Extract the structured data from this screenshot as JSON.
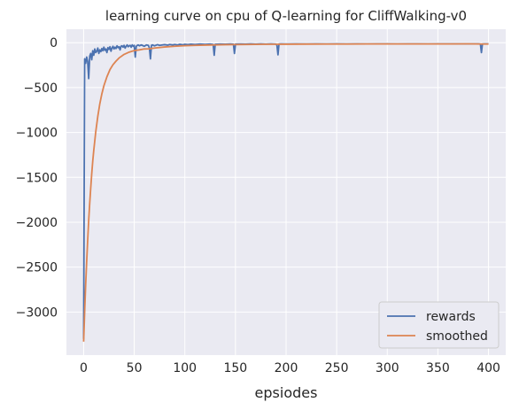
{
  "chart_data": {
    "type": "line",
    "title": "learning curve on cpu of Q-learning for CliffWalking-v0",
    "xlabel": "epsiodes",
    "ylabel": "",
    "xlim": [
      -17,
      417
    ],
    "ylim": [
      -3480,
      150
    ],
    "x_ticks": [
      0,
      50,
      100,
      150,
      200,
      250,
      300,
      350,
      400
    ],
    "y_ticks": [
      0,
      -500,
      -1000,
      -1500,
      -2000,
      -2500,
      -3000
    ],
    "y_tick_labels": [
      "0",
      "−500",
      "−1000",
      "−1500",
      "−2000",
      "−2500",
      "−3000"
    ],
    "grid": true,
    "legend_position": "lower-right",
    "colors": {
      "rewards": "#4c72b0",
      "smoothed": "#dd8452",
      "axes_background": "#eaeaf2",
      "grid": "#ffffff"
    },
    "series": [
      {
        "name": "rewards",
        "points": [
          [
            0,
            -3300
          ],
          [
            1,
            -180
          ],
          [
            2,
            -230
          ],
          [
            3,
            -160
          ],
          [
            4,
            -210
          ],
          [
            5,
            -400
          ],
          [
            6,
            -150
          ],
          [
            7,
            -120
          ],
          [
            8,
            -190
          ],
          [
            9,
            -90
          ],
          [
            10,
            -140
          ],
          [
            11,
            -70
          ],
          [
            12,
            -110
          ],
          [
            13,
            -95
          ],
          [
            14,
            -60
          ],
          [
            15,
            -120
          ],
          [
            16,
            -80
          ],
          [
            17,
            -100
          ],
          [
            18,
            -65
          ],
          [
            19,
            -90
          ],
          [
            20,
            -50
          ],
          [
            21,
            -85
          ],
          [
            22,
            -70
          ],
          [
            23,
            -110
          ],
          [
            24,
            -55
          ],
          [
            25,
            -75
          ],
          [
            26,
            -45
          ],
          [
            27,
            -95
          ],
          [
            28,
            -60
          ],
          [
            29,
            -40
          ],
          [
            30,
            -70
          ],
          [
            31,
            -50
          ],
          [
            32,
            -65
          ],
          [
            33,
            -35
          ],
          [
            34,
            -55
          ],
          [
            35,
            -45
          ],
          [
            36,
            -80
          ],
          [
            37,
            -40
          ],
          [
            38,
            -35
          ],
          [
            39,
            -50
          ],
          [
            40,
            -30
          ],
          [
            41,
            -60
          ],
          [
            42,
            -40
          ],
          [
            43,
            -25
          ],
          [
            44,
            -45
          ],
          [
            45,
            -35
          ],
          [
            46,
            -30
          ],
          [
            47,
            -50
          ],
          [
            48,
            -25
          ],
          [
            49,
            -40
          ],
          [
            50,
            -30
          ],
          [
            51,
            -160
          ],
          [
            52,
            -40
          ],
          [
            53,
            -30
          ],
          [
            54,
            -25
          ],
          [
            55,
            -35
          ],
          [
            57,
            -25
          ],
          [
            60,
            -40
          ],
          [
            62,
            -25
          ],
          [
            64,
            -30
          ],
          [
            65,
            -60
          ],
          [
            66,
            -180
          ],
          [
            67,
            -30
          ],
          [
            68,
            -25
          ],
          [
            70,
            -35
          ],
          [
            73,
            -22
          ],
          [
            75,
            -30
          ],
          [
            78,
            -25
          ],
          [
            80,
            -22
          ],
          [
            83,
            -28
          ],
          [
            85,
            -20
          ],
          [
            88,
            -25
          ],
          [
            90,
            -20
          ],
          [
            93,
            -26
          ],
          [
            95,
            -18
          ],
          [
            98,
            -24
          ],
          [
            100,
            -18
          ],
          [
            103,
            -22
          ],
          [
            106,
            -17
          ],
          [
            110,
            -20
          ],
          [
            115,
            -16
          ],
          [
            120,
            -19
          ],
          [
            125,
            -16
          ],
          [
            128,
            -20
          ],
          [
            129,
            -140
          ],
          [
            130,
            -18
          ],
          [
            135,
            -15
          ],
          [
            140,
            -17
          ],
          [
            145,
            -14
          ],
          [
            148,
            -17
          ],
          [
            149,
            -120
          ],
          [
            150,
            -16
          ],
          [
            155,
            -14
          ],
          [
            160,
            -16
          ],
          [
            165,
            -13
          ],
          [
            170,
            -15
          ],
          [
            175,
            -13
          ],
          [
            180,
            -15
          ],
          [
            185,
            -13
          ],
          [
            190,
            -15
          ],
          [
            191,
            -30
          ],
          [
            192,
            -135
          ],
          [
            193,
            -14
          ],
          [
            195,
            -13
          ],
          [
            200,
            -14
          ],
          [
            210,
            -13
          ],
          [
            220,
            -14
          ],
          [
            230,
            -13
          ],
          [
            240,
            -14
          ],
          [
            250,
            -13
          ],
          [
            260,
            -14
          ],
          [
            270,
            -13
          ],
          [
            280,
            -14
          ],
          [
            290,
            -13
          ],
          [
            300,
            -13
          ],
          [
            310,
            -14
          ],
          [
            320,
            -13
          ],
          [
            330,
            -13
          ],
          [
            340,
            -14
          ],
          [
            350,
            -13
          ],
          [
            360,
            -13
          ],
          [
            370,
            -13
          ],
          [
            380,
            -13
          ],
          [
            390,
            -13
          ],
          [
            392,
            -15
          ],
          [
            393,
            -110
          ],
          [
            394,
            -14
          ],
          [
            396,
            -13
          ],
          [
            400,
            -13
          ]
        ]
      },
      {
        "name": "smoothed",
        "points": [
          [
            0,
            -3330
          ],
          [
            1,
            -3000
          ],
          [
            2,
            -2700
          ],
          [
            3,
            -2440
          ],
          [
            4,
            -2200
          ],
          [
            5,
            -1980
          ],
          [
            6,
            -1790
          ],
          [
            7,
            -1620
          ],
          [
            8,
            -1460
          ],
          [
            9,
            -1320
          ],
          [
            10,
            -1200
          ],
          [
            12,
            -990
          ],
          [
            14,
            -820
          ],
          [
            16,
            -680
          ],
          [
            18,
            -570
          ],
          [
            20,
            -480
          ],
          [
            23,
            -380
          ],
          [
            26,
            -300
          ],
          [
            29,
            -245
          ],
          [
            32,
            -205
          ],
          [
            35,
            -170
          ],
          [
            40,
            -130
          ],
          [
            45,
            -105
          ],
          [
            50,
            -88
          ],
          [
            55,
            -80
          ],
          [
            60,
            -70
          ],
          [
            65,
            -68
          ],
          [
            70,
            -60
          ],
          [
            80,
            -48
          ],
          [
            90,
            -40
          ],
          [
            100,
            -34
          ],
          [
            110,
            -30
          ],
          [
            120,
            -27
          ],
          [
            130,
            -25
          ],
          [
            140,
            -22
          ],
          [
            150,
            -21
          ],
          [
            160,
            -20
          ],
          [
            170,
            -19
          ],
          [
            180,
            -18
          ],
          [
            190,
            -18
          ],
          [
            200,
            -17
          ],
          [
            220,
            -16
          ],
          [
            240,
            -15
          ],
          [
            260,
            -15
          ],
          [
            280,
            -14
          ],
          [
            300,
            -14
          ],
          [
            320,
            -14
          ],
          [
            340,
            -14
          ],
          [
            360,
            -14
          ],
          [
            380,
            -13
          ],
          [
            395,
            -15
          ],
          [
            400,
            -15
          ]
        ]
      }
    ]
  }
}
